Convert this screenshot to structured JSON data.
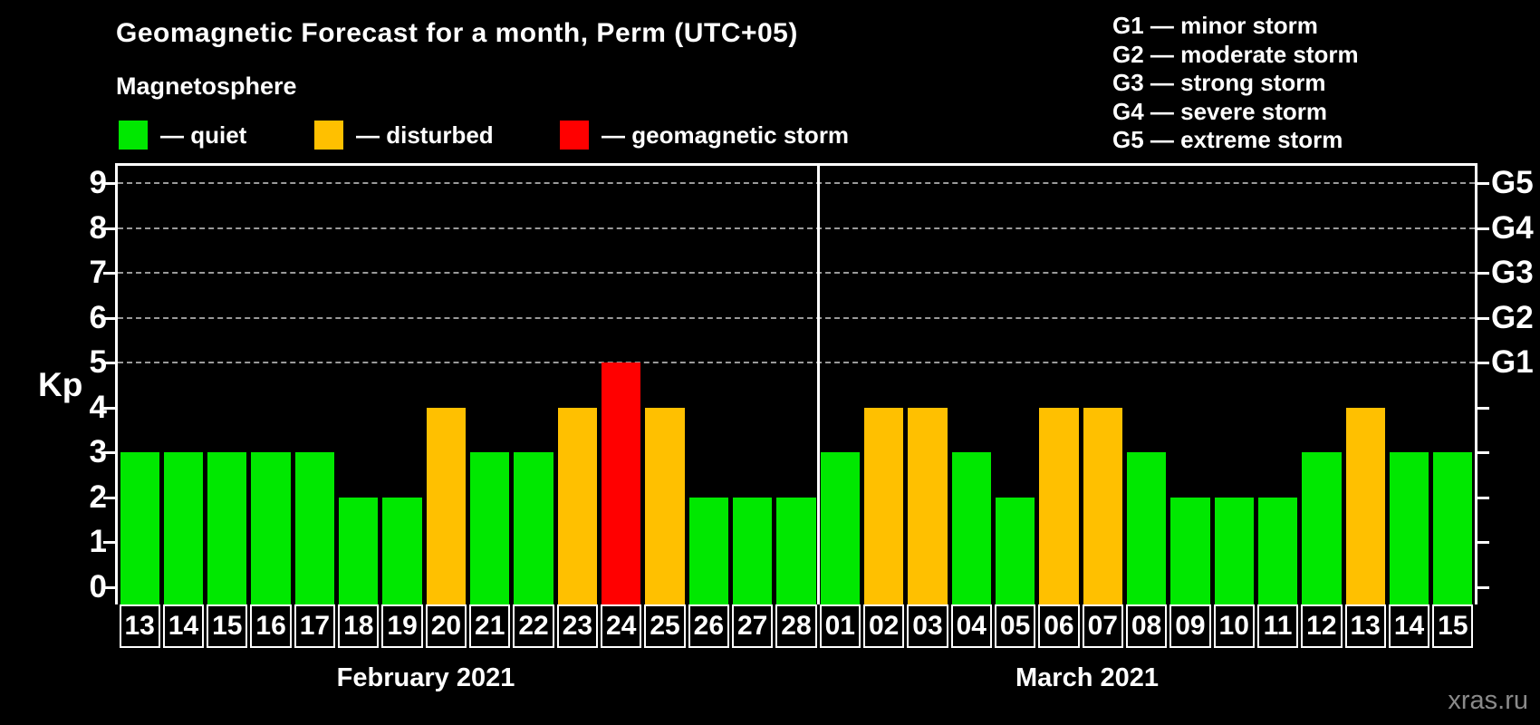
{
  "watermark": "xras.ru",
  "legend": {
    "items": [
      {
        "label": "— quiet",
        "color": "#00e800",
        "key": "quiet"
      },
      {
        "label": "— disturbed",
        "color": "#ffc000",
        "key": "disturbed"
      },
      {
        "label": "— geomagnetic storm",
        "color": "#ff0000",
        "key": "storm"
      }
    ]
  },
  "g_legend": [
    "G1 — minor storm",
    "G2 — moderate storm",
    "G3 — strong storm",
    "G4 — severe storm",
    "G5 — extreme storm"
  ],
  "chart_data": {
    "type": "bar",
    "title": "Geomagnetic Forecast for a month, Perm (UTC+05)",
    "subtitle": "Magnetosphere",
    "ylabel": "Kp",
    "xlabel": "",
    "ylim": [
      0,
      9.4
    ],
    "y_ticks": [
      0,
      1,
      2,
      3,
      4,
      5,
      6,
      7,
      8,
      9
    ],
    "gridlines_at": [
      5,
      6,
      7,
      8,
      9
    ],
    "grid_style": "dashed",
    "right_axis": [
      {
        "label": "G1",
        "kp": 5
      },
      {
        "label": "G2",
        "kp": 6
      },
      {
        "label": "G3",
        "kp": 7
      },
      {
        "label": "G4",
        "kp": 8
      },
      {
        "label": "G5",
        "kp": 9
      }
    ],
    "status_colors": {
      "quiet": "#00e800",
      "disturbed": "#ffc000",
      "storm": "#ff0000"
    },
    "months": [
      {
        "label": "February 2021",
        "days": [
          {
            "day": "13",
            "kp": 3,
            "status": "quiet"
          },
          {
            "day": "14",
            "kp": 3,
            "status": "quiet"
          },
          {
            "day": "15",
            "kp": 3,
            "status": "quiet"
          },
          {
            "day": "16",
            "kp": 3,
            "status": "quiet"
          },
          {
            "day": "17",
            "kp": 3,
            "status": "quiet"
          },
          {
            "day": "18",
            "kp": 2,
            "status": "quiet"
          },
          {
            "day": "19",
            "kp": 2,
            "status": "quiet"
          },
          {
            "day": "20",
            "kp": 4,
            "status": "disturbed"
          },
          {
            "day": "21",
            "kp": 3,
            "status": "quiet"
          },
          {
            "day": "22",
            "kp": 3,
            "status": "quiet"
          },
          {
            "day": "23",
            "kp": 4,
            "status": "disturbed"
          },
          {
            "day": "24",
            "kp": 5,
            "status": "storm"
          },
          {
            "day": "25",
            "kp": 4,
            "status": "disturbed"
          },
          {
            "day": "26",
            "kp": 2,
            "status": "quiet"
          },
          {
            "day": "27",
            "kp": 2,
            "status": "quiet"
          },
          {
            "day": "28",
            "kp": 2,
            "status": "quiet"
          }
        ]
      },
      {
        "label": "March 2021",
        "days": [
          {
            "day": "01",
            "kp": 3,
            "status": "quiet"
          },
          {
            "day": "02",
            "kp": 4,
            "status": "disturbed"
          },
          {
            "day": "03",
            "kp": 4,
            "status": "disturbed"
          },
          {
            "day": "04",
            "kp": 3,
            "status": "quiet"
          },
          {
            "day": "05",
            "kp": 2,
            "status": "quiet"
          },
          {
            "day": "06",
            "kp": 4,
            "status": "disturbed"
          },
          {
            "day": "07",
            "kp": 4,
            "status": "disturbed"
          },
          {
            "day": "08",
            "kp": 3,
            "status": "quiet"
          },
          {
            "day": "09",
            "kp": 2,
            "status": "quiet"
          },
          {
            "day": "10",
            "kp": 2,
            "status": "quiet"
          },
          {
            "day": "11",
            "kp": 2,
            "status": "quiet"
          },
          {
            "day": "12",
            "kp": 3,
            "status": "quiet"
          },
          {
            "day": "13",
            "kp": 4,
            "status": "disturbed"
          },
          {
            "day": "14",
            "kp": 3,
            "status": "quiet"
          },
          {
            "day": "15",
            "kp": 3,
            "status": "quiet"
          }
        ]
      }
    ]
  }
}
